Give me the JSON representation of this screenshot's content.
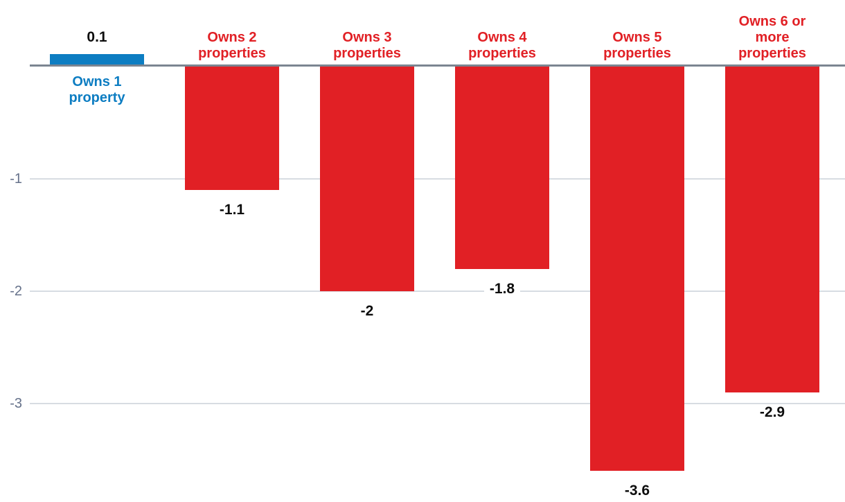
{
  "chart_data": {
    "type": "bar",
    "title": "",
    "categories": [
      "Owns 1\nproperty",
      "Owns 2\nproperties",
      "Owns 3\nproperties",
      "Owns 4\nproperties",
      "Owns 5\nproperties",
      "Owns 6 or\nmore\nproperties"
    ],
    "values": [
      0.1,
      -1.1,
      -2,
      -1.8,
      -3.6,
      -2.9
    ],
    "value_labels": [
      "0.1",
      "-1.1",
      "-2",
      "-1.8",
      "-3.6",
      "-2.9"
    ],
    "bar_colors": [
      "#0d7dc2",
      "#e12025",
      "#e12025",
      "#e12025",
      "#e12025",
      "#e12025"
    ],
    "yticks": [
      {
        "label": "-1",
        "value": -1
      },
      {
        "label": "-2",
        "value": -2
      },
      {
        "label": "-3",
        "value": -3
      }
    ],
    "ylim": [
      -3.88,
      0.59
    ],
    "xlabel": "",
    "ylabel": "",
    "grid": "horizontal",
    "legend": "none",
    "colors": {
      "positive_bar": "#0d7dc2",
      "negative_bar": "#e12025",
      "gridline": "#d7dce2",
      "axis_line": "#7b8591",
      "tick_label": "#65718a",
      "value_label": "#0d0d0d",
      "background": "#ffffff"
    }
  }
}
